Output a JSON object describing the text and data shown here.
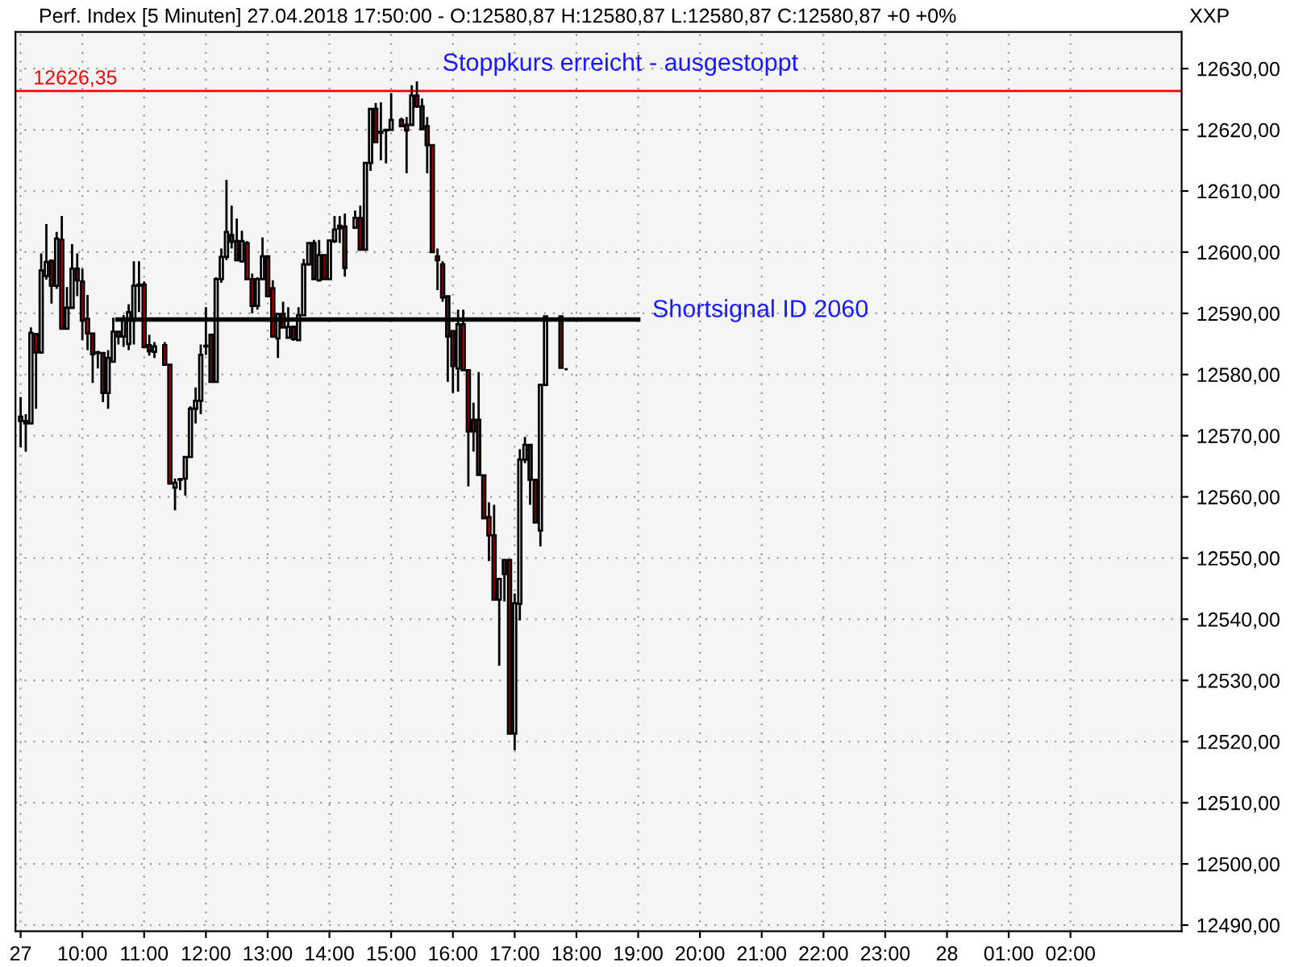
{
  "chart_data": {
    "type": "candlestick",
    "title": "Perf. Index [5 Minuten] 27.04.2018 17:50:00 - O:12580,87 H:12580,87 L:12580,87 C:12580,87 +0 +0%",
    "x": [
      "2018-04-27T09:00",
      "2018-04-27T09:05",
      "2018-04-27T09:10",
      "2018-04-27T09:15",
      "2018-04-27T09:20",
      "2018-04-27T09:25",
      "2018-04-27T09:30",
      "2018-04-27T09:35",
      "2018-04-27T09:40",
      "2018-04-27T09:45",
      "2018-04-27T09:50",
      "2018-04-27T09:55",
      "2018-04-27T10:00",
      "2018-04-27T10:05",
      "2018-04-27T10:10",
      "2018-04-27T10:15",
      "2018-04-27T10:20",
      "2018-04-27T10:25",
      "2018-04-27T10:30",
      "2018-04-27T10:35",
      "2018-04-27T10:40",
      "2018-04-27T10:45",
      "2018-04-27T10:50",
      "2018-04-27T10:55",
      "2018-04-27T11:00",
      "2018-04-27T11:05",
      "2018-04-27T11:10",
      "2018-04-27T11:20",
      "2018-04-27T11:25",
      "2018-04-27T11:30",
      "2018-04-27T11:35",
      "2018-04-27T11:40",
      "2018-04-27T11:45",
      "2018-04-27T11:50",
      "2018-04-27T11:55",
      "2018-04-27T12:00",
      "2018-04-27T12:05",
      "2018-04-27T12:10",
      "2018-04-27T12:15",
      "2018-04-27T12:20",
      "2018-04-27T12:25",
      "2018-04-27T12:30",
      "2018-04-27T12:35",
      "2018-04-27T12:40",
      "2018-04-27T12:45",
      "2018-04-27T12:50",
      "2018-04-27T12:55",
      "2018-04-27T13:00",
      "2018-04-27T13:05",
      "2018-04-27T13:10",
      "2018-04-27T13:15",
      "2018-04-27T13:20",
      "2018-04-27T13:25",
      "2018-04-27T13:30",
      "2018-04-27T13:35",
      "2018-04-27T13:40",
      "2018-04-27T13:45",
      "2018-04-27T13:50",
      "2018-04-27T13:55",
      "2018-04-27T14:00",
      "2018-04-27T14:05",
      "2018-04-27T14:10",
      "2018-04-27T14:15",
      "2018-04-27T14:25",
      "2018-04-27T14:30",
      "2018-04-27T14:35",
      "2018-04-27T14:40",
      "2018-04-27T14:45",
      "2018-04-27T14:50",
      "2018-04-27T14:55",
      "2018-04-27T15:00",
      "2018-04-27T15:10",
      "2018-04-27T15:15",
      "2018-04-27T15:20",
      "2018-04-27T15:25",
      "2018-04-27T15:30",
      "2018-04-27T15:35",
      "2018-04-27T15:40",
      "2018-04-27T15:45",
      "2018-04-27T15:50",
      "2018-04-27T15:55",
      "2018-04-27T16:00",
      "2018-04-27T16:05",
      "2018-04-27T16:10",
      "2018-04-27T16:15",
      "2018-04-27T16:20",
      "2018-04-27T16:25",
      "2018-04-27T16:30",
      "2018-04-27T16:35",
      "2018-04-27T16:40",
      "2018-04-27T16:45",
      "2018-04-27T16:50",
      "2018-04-27T16:55",
      "2018-04-27T17:00",
      "2018-04-27T17:05",
      "2018-04-27T17:10",
      "2018-04-27T17:15",
      "2018-04-27T17:20",
      "2018-04-27T17:25",
      "2018-04-27T17:30",
      "2018-04-27T17:45",
      "2018-04-27T17:50"
    ],
    "series": [
      {
        "ohlc": [
          [
            12573.1,
            12576.3,
            12568.1,
            12572.4
          ],
          [
            12572.4,
            12573.5,
            12567.4,
            12572.0
          ],
          [
            12572.0,
            12587.7,
            12571.9,
            12586.8
          ],
          [
            12586.6,
            12586.8,
            12574.4,
            12583.6
          ],
          [
            12583.6,
            12599.8,
            12583.4,
            12597.0
          ],
          [
            12596.1,
            12604.6,
            12595.5,
            12598.4
          ],
          [
            12598.6,
            12598.8,
            12591.6,
            12594.5
          ],
          [
            12594.5,
            12603.3,
            12594.0,
            12602.2
          ],
          [
            12602.0,
            12605.9,
            12587.5,
            12587.5
          ],
          [
            12587.5,
            12594.3,
            12587.5,
            12590.9
          ],
          [
            12590.9,
            12601.3,
            12590.9,
            12597.3
          ],
          [
            12597.3,
            12599.8,
            12592.8,
            12595.4
          ],
          [
            12595.2,
            12597.3,
            12585.6,
            12588.8
          ],
          [
            12589.1,
            12593.0,
            12584.0,
            12586.7
          ],
          [
            12586.7,
            12586.7,
            12578.6,
            12583.3
          ],
          [
            12583.5,
            12583.9,
            12581.0,
            12583.6
          ],
          [
            12583.5,
            12583.5,
            12575.5,
            12577.0
          ],
          [
            12577.0,
            12584.0,
            12574.4,
            12582.7
          ],
          [
            12582.1,
            12589.3,
            12582.1,
            12587.0
          ],
          [
            12587.0,
            12587.0,
            12584.9,
            12586.2
          ],
          [
            12586.2,
            12589.7,
            12584.5,
            12588.8
          ],
          [
            12585.0,
            12591.5,
            12584.0,
            12590.2
          ],
          [
            12588.8,
            12598.5,
            12584.9,
            12594.5
          ],
          [
            12594.5,
            12598.5,
            12590.2,
            12594.7
          ],
          [
            12594.7,
            12595.2,
            12584.5,
            12584.5
          ],
          [
            12584.8,
            12586.5,
            12583.1,
            12583.8
          ],
          [
            12583.7,
            12585.3,
            12582.7,
            12584.6
          ],
          [
            12584.8,
            12585.3,
            12581.6,
            12581.6
          ],
          [
            12581.6,
            12581.6,
            12562.0,
            12562.2
          ],
          [
            12561.5,
            12563.0,
            12557.8,
            12562.3
          ],
          [
            12562.8,
            12563.0,
            12561.1,
            12562.9
          ],
          [
            12563.0,
            12566.5,
            12560.2,
            12566.5
          ],
          [
            12566.5,
            12574.8,
            12566.4,
            12574.4
          ],
          [
            12574.4,
            12577.9,
            12572.0,
            12575.7
          ],
          [
            12575.7,
            12584.9,
            12573.5,
            12583.2
          ],
          [
            12584.6,
            12591.0,
            12583.2,
            12584.7
          ],
          [
            12586.5,
            12586.5,
            12578.8,
            12578.8
          ],
          [
            12578.8,
            12595.9,
            12578.8,
            12595.6
          ],
          [
            12595.6,
            12600.6,
            12595.0,
            12599.2
          ],
          [
            12599.2,
            12611.8,
            12598.7,
            12603.3
          ],
          [
            12602.8,
            12607.6,
            12600.6,
            12601.7
          ],
          [
            12601.8,
            12605.5,
            12598.5,
            12598.7
          ],
          [
            12598.5,
            12603.5,
            12598.3,
            12601.8
          ],
          [
            12601.5,
            12601.8,
            12595.6,
            12595.6
          ],
          [
            12595.6,
            12596.5,
            12590.0,
            12591.2
          ],
          [
            12591.2,
            12595.9,
            12590.6,
            12595.6
          ],
          [
            12595.6,
            12602.4,
            12595.4,
            12599.3
          ],
          [
            12599.3,
            12599.5,
            12592.8,
            12592.8
          ],
          [
            12594.1,
            12595.4,
            12586.0,
            12586.2
          ],
          [
            12585.9,
            12590.0,
            12582.7,
            12589.9
          ],
          [
            12589.9,
            12591.9,
            12587.7,
            12587.7
          ],
          [
            12586.0,
            12591.0,
            12585.9,
            12587.8
          ],
          [
            12587.8,
            12588.0,
            12585.5,
            12585.8
          ],
          [
            12585.6,
            12591.0,
            12585.6,
            12589.7
          ],
          [
            12589.7,
            12598.9,
            12589.7,
            12598.0
          ],
          [
            12598.0,
            12601.6,
            12597.8,
            12601.5
          ],
          [
            12601.5,
            12602.0,
            12595.6,
            12595.6
          ],
          [
            12595.4,
            12602.0,
            12595.2,
            12599.5
          ],
          [
            12599.5,
            12599.6,
            12595.6,
            12595.6
          ],
          [
            12595.6,
            12602.0,
            12595.6,
            12601.9
          ],
          [
            12601.8,
            12605.9,
            12601.5,
            12603.7
          ],
          [
            12603.9,
            12605.9,
            12601.5,
            12604.3
          ],
          [
            12604.2,
            12606.3,
            12596.0,
            12597.4
          ],
          [
            12604.0,
            12606.8,
            12603.8,
            12605.6
          ],
          [
            12605.6,
            12607.6,
            12600.4,
            12600.4
          ],
          [
            12600.4,
            12614.6,
            12600.4,
            12614.6
          ],
          [
            12614.6,
            12623.4,
            12613.3,
            12623.4
          ],
          [
            12623.4,
            12624.4,
            12618.0,
            12618.0
          ],
          [
            12619.5,
            12624.5,
            12615.0,
            12619.7
          ],
          [
            12619.9,
            12620.1,
            12614.5,
            12620.0
          ],
          [
            12620.0,
            12626.0,
            12620.0,
            12621.6
          ],
          [
            12621.6,
            12622.0,
            12620.4,
            12620.6
          ],
          [
            12620.8,
            12622.1,
            12612.9,
            12619.9
          ],
          [
            12620.8,
            12627.3,
            12620.8,
            12625.6
          ],
          [
            12625.6,
            12627.9,
            12623.6,
            12623.8
          ],
          [
            12623.8,
            12625.1,
            12620.1,
            12620.1
          ],
          [
            12620.6,
            12622.1,
            12612.9,
            12617.5
          ],
          [
            12617.5,
            12617.5,
            12600.0,
            12600.0
          ],
          [
            12599.3,
            12600.6,
            12593.8,
            12598.7
          ],
          [
            12598.0,
            12598.5,
            12591.9,
            12592.6
          ],
          [
            12592.8,
            12592.8,
            12578.8,
            12586.2
          ],
          [
            12587.1,
            12587.1,
            12577.0,
            12581.4
          ],
          [
            12581.0,
            12590.6,
            12577.2,
            12588.2
          ],
          [
            12588.2,
            12590.6,
            12580.7,
            12580.7
          ],
          [
            12580.7,
            12580.7,
            12561.7,
            12570.7
          ],
          [
            12572.6,
            12575.4,
            12567.4,
            12570.7
          ],
          [
            12572.6,
            12580.4,
            12563.6,
            12563.6
          ],
          [
            12563.5,
            12563.5,
            12556.4,
            12556.5
          ],
          [
            12556.7,
            12559.1,
            12549.5,
            12553.7
          ],
          [
            12553.7,
            12558.7,
            12543.2,
            12543.2
          ],
          [
            12543.2,
            12546.6,
            12532.4,
            12546.6
          ],
          [
            12549.7,
            12549.7,
            12542.9,
            12547.4
          ],
          [
            12549.7,
            12549.7,
            12521.3,
            12521.3
          ],
          [
            12521.3,
            12544.2,
            12518.6,
            12542.6
          ],
          [
            12542.5,
            12567.8,
            12539.8,
            12566.1
          ],
          [
            12566.1,
            12569.8,
            12565.5,
            12568.5
          ],
          [
            12568.5,
            12568.5,
            12558.7,
            12562.8
          ],
          [
            12562.8,
            12562.8,
            12555.8,
            12555.8
          ],
          [
            12554.5,
            12578.3,
            12551.9,
            12578.3
          ],
          [
            12578.3,
            12589.5,
            12578.1,
            12589.5
          ],
          [
            12589.5,
            12589.5,
            12581.1,
            12581.1
          ],
          [
            12580.87,
            12580.87,
            12580.87,
            12580.87
          ]
        ],
        "colors": [
          "#e00000",
          "#e00000",
          "#ffffff",
          "#e00000",
          "#ffffff",
          "#ffffff",
          "#e00000",
          "#ffffff",
          "#e00000",
          "#ffffff",
          "#ffffff",
          "#e00000",
          "#e00000",
          "#e00000",
          "#e00000",
          "#ffffff",
          "#e00000",
          "#ffffff",
          "#ffffff",
          "#e00000",
          "#ffffff",
          "#ffffff",
          "#ffffff",
          "#ffffff",
          "#e00000",
          "#e00000",
          "#ffffff",
          "#e00000",
          "#e00000",
          "#ffffff",
          "#ffffff",
          "#ffffff",
          "#ffffff",
          "#ffffff",
          "#ffffff",
          "#ffffff",
          "#e00000",
          "#ffffff",
          "#ffffff",
          "#ffffff",
          "#e00000",
          "#e00000",
          "#ffffff",
          "#e00000",
          "#e00000",
          "#ffffff",
          "#ffffff",
          "#e00000",
          "#e00000",
          "#ffffff",
          "#e00000",
          "#ffffff",
          "#e00000",
          "#ffffff",
          "#ffffff",
          "#ffffff",
          "#e00000",
          "#ffffff",
          "#e00000",
          "#ffffff",
          "#ffffff",
          "#ffffff",
          "#e00000",
          "#ffffff",
          "#e00000",
          "#ffffff",
          "#ffffff",
          "#e00000",
          "#ffffff",
          "#ffffff",
          "#ffffff",
          "#e00000",
          "#e00000",
          "#ffffff",
          "#e00000",
          "#e00000",
          "#e00000",
          "#e00000",
          "#e00000",
          "#e00000",
          "#e00000",
          "#e00000",
          "#ffffff",
          "#e00000",
          "#e00000",
          "#e00000",
          "#e00000",
          "#e00000",
          "#e00000",
          "#e00000",
          "#ffffff",
          "#e00000",
          "#e00000",
          "#ffffff",
          "#ffffff",
          "#ffffff",
          "#e00000",
          "#e00000",
          "#ffffff",
          "#ffffff",
          "#e00000",
          "#000000"
        ]
      },
      {
        "type": "line",
        "color": "#000000",
        "x": [
          "2018-04-27T10:34",
          "2018-04-27T19:00"
        ],
        "values": [
          12589,
          12589
        ]
      }
    ],
    "xlim": [
      "2018-04-27T08:55",
      "2018-04-28T03:48"
    ],
    "ylim": [
      12489,
      12636
    ],
    "xticks": [
      {
        "value": "2018-04-27T09:00",
        "label": "27"
      },
      {
        "value": "2018-04-27T10:00",
        "label": "10:00"
      },
      {
        "value": "2018-04-27T11:00",
        "label": "11:00"
      },
      {
        "value": "2018-04-27T12:00",
        "label": "12:00"
      },
      {
        "value": "2018-04-27T13:00",
        "label": "13:00"
      },
      {
        "value": "2018-04-27T14:00",
        "label": "14:00"
      },
      {
        "value": "2018-04-27T15:00",
        "label": "15:00"
      },
      {
        "value": "2018-04-27T16:00",
        "label": "16:00"
      },
      {
        "value": "2018-04-27T17:00",
        "label": "17:00"
      },
      {
        "value": "2018-04-27T18:00",
        "label": "18:00"
      },
      {
        "value": "2018-04-27T19:00",
        "label": "19:00"
      },
      {
        "value": "2018-04-27T20:00",
        "label": "20:00"
      },
      {
        "value": "2018-04-27T21:00",
        "label": "21:00"
      },
      {
        "value": "2018-04-27T22:00",
        "label": "22:00"
      },
      {
        "value": "2018-04-27T23:00",
        "label": "23:00"
      },
      {
        "value": "2018-04-28T00:00",
        "label": "28"
      },
      {
        "value": "2018-04-28T01:00",
        "label": "01:00"
      },
      {
        "value": "2018-04-28T02:00",
        "label": "02:00"
      }
    ],
    "yticks": [
      {
        "value": 12490,
        "label": "12490,00"
      },
      {
        "value": 12500,
        "label": "12500,00"
      },
      {
        "value": 12510,
        "label": "12510,00"
      },
      {
        "value": 12520,
        "label": "12520,00"
      },
      {
        "value": 12530,
        "label": "12530,00"
      },
      {
        "value": 12540,
        "label": "12540,00"
      },
      {
        "value": 12550,
        "label": "12550,00"
      },
      {
        "value": 12560,
        "label": "12560,00"
      },
      {
        "value": 12570,
        "label": "12570,00"
      },
      {
        "value": 12580,
        "label": "12580,00"
      },
      {
        "value": 12590,
        "label": "12590,00"
      },
      {
        "value": 12600,
        "label": "12600,00"
      },
      {
        "value": 12610,
        "label": "12610,00"
      },
      {
        "value": 12620,
        "label": "12620,00"
      },
      {
        "value": 12630,
        "label": "12630,00"
      }
    ],
    "grid": true,
    "ref_lines": [
      {
        "axis": "y",
        "value": 12626.35,
        "label": "12626,35",
        "color": "#ff0000"
      }
    ],
    "annotations": [
      "Stoppkurs erreicht - ausgestoppt",
      "Shortsignal ID 2060",
      "XXP"
    ]
  }
}
